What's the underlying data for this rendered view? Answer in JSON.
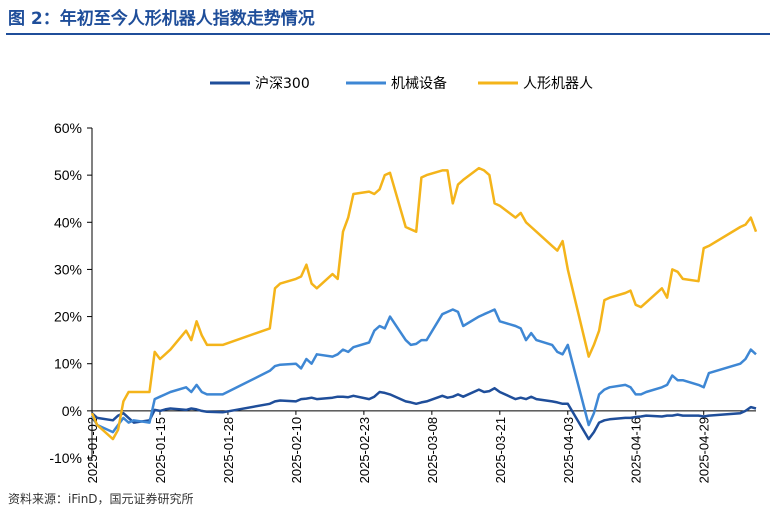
{
  "header": {
    "title": "图 2：年初至今人形机器人指数走势情况"
  },
  "footer": {
    "source": "资料来源：iFinD，国元证券研究所"
  },
  "chart_data": {
    "type": "line",
    "title": "",
    "xlabel": "",
    "ylabel": "",
    "ylim": [
      -10,
      60
    ],
    "y_ticks": [
      -10,
      0,
      10,
      20,
      30,
      40,
      50,
      60
    ],
    "y_tick_labels": [
      "-10%",
      "0%",
      "10%",
      "20%",
      "30%",
      "40%",
      "50%",
      "60%"
    ],
    "x_ticks": [
      "2025-01-02",
      "2025-01-15",
      "2025-01-28",
      "2025-02-10",
      "2025-02-23",
      "2025-03-08",
      "2025-03-21",
      "2025-04-03",
      "2025-04-16",
      "2025-04-29"
    ],
    "grid": false,
    "legend_position": "top",
    "x": [
      "2025-01-02",
      "2025-01-03",
      "2025-01-06",
      "2025-01-07",
      "2025-01-08",
      "2025-01-09",
      "2025-01-10",
      "2025-01-13",
      "2025-01-14",
      "2025-01-15",
      "2025-01-16",
      "2025-01-17",
      "2025-01-20",
      "2025-01-21",
      "2025-01-22",
      "2025-01-23",
      "2025-01-24",
      "2025-01-27",
      "2025-02-05",
      "2025-02-06",
      "2025-02-07",
      "2025-02-10",
      "2025-02-11",
      "2025-02-12",
      "2025-02-13",
      "2025-02-14",
      "2025-02-17",
      "2025-02-18",
      "2025-02-19",
      "2025-02-20",
      "2025-02-21",
      "2025-02-24",
      "2025-02-25",
      "2025-02-26",
      "2025-02-27",
      "2025-02-28",
      "2025-03-03",
      "2025-03-04",
      "2025-03-05",
      "2025-03-06",
      "2025-03-07",
      "2025-03-10",
      "2025-03-11",
      "2025-03-12",
      "2025-03-13",
      "2025-03-14",
      "2025-03-17",
      "2025-03-18",
      "2025-03-19",
      "2025-03-20",
      "2025-03-21",
      "2025-03-24",
      "2025-03-25",
      "2025-03-26",
      "2025-03-27",
      "2025-03-28",
      "2025-03-31",
      "2025-04-01",
      "2025-04-02",
      "2025-04-03",
      "2025-04-07",
      "2025-04-08",
      "2025-04-09",
      "2025-04-10",
      "2025-04-11",
      "2025-04-14",
      "2025-04-15",
      "2025-04-16",
      "2025-04-17",
      "2025-04-18",
      "2025-04-21",
      "2025-04-22",
      "2025-04-23",
      "2025-04-24",
      "2025-04-25",
      "2025-04-28",
      "2025-04-29",
      "2025-04-30",
      "2025-05-06",
      "2025-05-07",
      "2025-05-08",
      "2025-05-09"
    ],
    "series": [
      {
        "name": "沪深300",
        "color": "#1f4e9a",
        "values": [
          -0.5,
          -1.5,
          -2.0,
          -1.0,
          -0.5,
          -1.5,
          -2.5,
          -2.0,
          0.2,
          0.0,
          0.3,
          0.5,
          0.2,
          0.5,
          0.3,
          0.0,
          -0.2,
          -0.3,
          1.5,
          2.0,
          2.2,
          2.0,
          2.5,
          2.6,
          2.8,
          2.5,
          2.8,
          3.0,
          3.0,
          2.9,
          3.2,
          2.5,
          3.0,
          4.0,
          3.8,
          3.5,
          2.0,
          1.8,
          1.5,
          1.8,
          2.0,
          3.2,
          2.8,
          3.0,
          3.5,
          3.0,
          4.5,
          4.0,
          4.2,
          4.8,
          4.0,
          2.5,
          2.8,
          2.5,
          3.0,
          2.5,
          2.0,
          1.8,
          1.5,
          1.5,
          -6.0,
          -4.5,
          -2.5,
          -2.0,
          -1.8,
          -1.5,
          -1.5,
          -1.3,
          -1.2,
          -1.0,
          -1.2,
          -1.0,
          -1.0,
          -0.8,
          -1.0,
          -1.0,
          -1.2,
          -1.0,
          -0.5,
          0.0,
          0.8,
          0.5
        ]
      },
      {
        "name": "机械设备",
        "color": "#3e87d4",
        "values": [
          -1.0,
          -3.0,
          -4.5,
          -3.0,
          -1.5,
          -2.5,
          -2.0,
          -2.5,
          2.5,
          3.0,
          3.5,
          4.0,
          5.0,
          4.0,
          5.5,
          4.0,
          3.5,
          3.5,
          8.5,
          9.5,
          9.8,
          10.0,
          9.0,
          11.0,
          10.0,
          12.0,
          11.5,
          12.0,
          13.0,
          12.5,
          13.5,
          14.5,
          17.0,
          18.0,
          17.5,
          20.0,
          15.0,
          14.0,
          14.2,
          15.0,
          15.0,
          20.5,
          21.0,
          21.5,
          21.0,
          18.0,
          20.0,
          20.5,
          21.0,
          21.5,
          19.0,
          18.0,
          17.5,
          15.0,
          16.5,
          15.0,
          14.0,
          12.5,
          12.0,
          14.0,
          -3.0,
          -0.5,
          3.5,
          4.5,
          5.0,
          5.5,
          5.0,
          3.5,
          3.5,
          4.0,
          5.0,
          5.5,
          7.5,
          6.5,
          6.5,
          5.5,
          5.0,
          8.0,
          10.0,
          11.0,
          13.0,
          12.0
        ]
      },
      {
        "name": "人形机器人",
        "color": "#f4b41a",
        "values": [
          -0.5,
          -3.0,
          -6.0,
          -4.0,
          2.0,
          4.0,
          4.0,
          4.0,
          12.5,
          11.0,
          12.0,
          13.0,
          17.0,
          15.0,
          19.0,
          16.0,
          14.0,
          14.0,
          17.5,
          26.0,
          27.0,
          28.0,
          28.5,
          31.0,
          27.0,
          26.0,
          29.0,
          28.0,
          38.0,
          41.0,
          46.0,
          46.5,
          46.0,
          47.0,
          50.0,
          50.5,
          39.0,
          38.5,
          38.0,
          49.5,
          50.0,
          51.0,
          51.0,
          44.0,
          48.0,
          49.0,
          51.5,
          51.0,
          50.0,
          44.0,
          43.5,
          41.0,
          42.0,
          40.0,
          39.0,
          38.0,
          35.0,
          34.0,
          36.0,
          30.0,
          11.5,
          14.0,
          17.0,
          23.5,
          24.0,
          25.0,
          25.5,
          22.5,
          22.0,
          23.0,
          26.0,
          24.0,
          30.0,
          29.5,
          28.0,
          27.5,
          34.5,
          35.0,
          39.0,
          39.5,
          41.0,
          38.0
        ]
      }
    ]
  }
}
